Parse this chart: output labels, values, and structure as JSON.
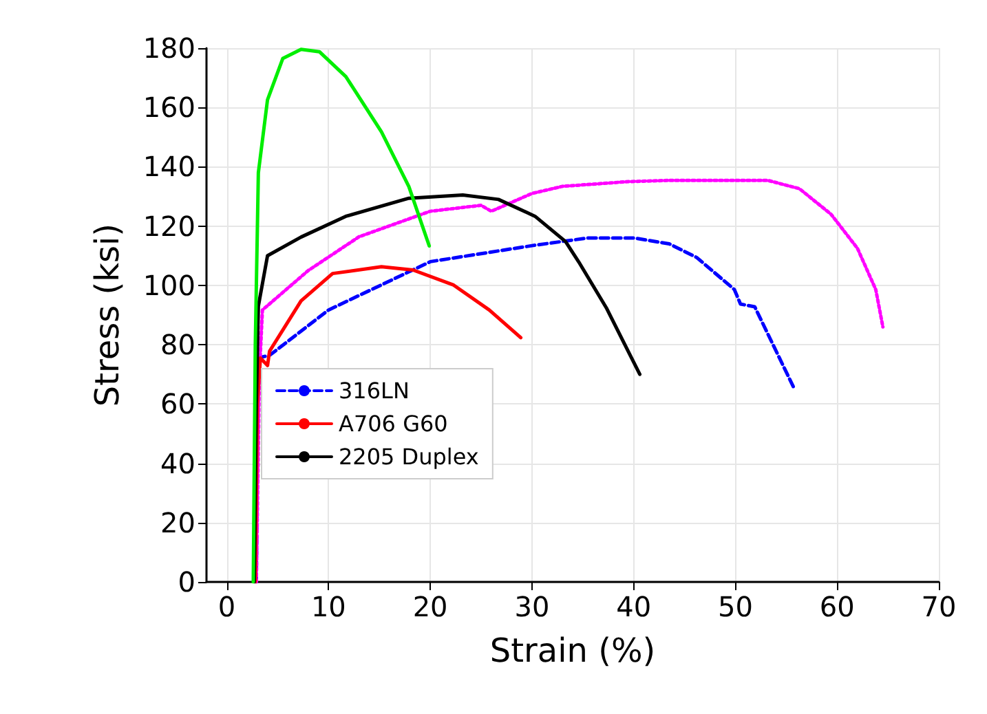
{
  "chart_data": {
    "type": "line",
    "xlabel": "Strain (%)",
    "ylabel": "Stress (ksi)",
    "xlim": [
      -2,
      70
    ],
    "xticks": [
      0,
      10,
      20,
      30,
      40,
      50,
      60,
      70
    ],
    "ylim": [
      0,
      180
    ],
    "yticks": [
      0,
      20,
      40,
      60,
      80,
      100,
      120,
      140,
      160,
      180
    ],
    "grid": true,
    "legend": "bottom left",
    "marker": "none",
    "series": [
      {
        "name": "316LN",
        "color": "#0000ff",
        "line_style": "dashed",
        "x": [
          2.9,
          3.1,
          4.2,
          10,
          20,
          30,
          35.5,
          40,
          43.5,
          46.2,
          49.9,
          50.5,
          51.9,
          55.7
        ],
        "values": [
          0,
          75.6,
          76.4,
          91.7,
          108,
          113.4,
          116,
          116,
          114,
          109.4,
          98.6,
          93.7,
          92.8,
          65.8
        ]
      },
      {
        "color": "#ff00ff",
        "line_style": "dotted",
        "x": [
          2.9,
          3.2,
          3.5,
          8,
          13,
          20,
          25,
          26,
          30,
          33,
          39.5,
          43.5,
          53.2,
          56.3,
          59.4,
          62,
          63.8,
          64.5
        ],
        "values": [
          0,
          70,
          91.7,
          105,
          116.4,
          125,
          127,
          125,
          131,
          133.4,
          135,
          135.4,
          135.4,
          132.6,
          124,
          112.5,
          98.6,
          86
        ]
      },
      {
        "name": "A706 G60",
        "color": "#ff0000",
        "line_style": "solid",
        "x": [
          2.8,
          3.0,
          3.3,
          4.0,
          4.2,
          7.3,
          10.4,
          15.2,
          18.3,
          22.3,
          25.8,
          28.9
        ],
        "values": [
          0,
          60,
          75.5,
          73,
          77.8,
          94.8,
          104,
          106.3,
          105.2,
          100.1,
          91.7,
          82.4
        ]
      },
      {
        "name": "2205 Duplex",
        "color": "#000000",
        "line_style": "solid",
        "x": [
          2.7,
          2.9,
          3.1,
          4.0,
          7.3,
          11.7,
          17.9,
          23.2,
          26.7,
          30.3,
          33.3,
          34.6,
          37.3,
          40.6
        ],
        "values": [
          0,
          60,
          93,
          110,
          116.3,
          123.3,
          129.4,
          130.5,
          129,
          123.3,
          114.8,
          107.9,
          92.5,
          70
        ]
      },
      {
        "color": "#00ee00",
        "line_style": "solid",
        "x": [
          2.6,
          2.8,
          3.1,
          4.0,
          5.5,
          7.3,
          9.1,
          11.7,
          15.2,
          17.9,
          19.9
        ],
        "values": [
          0,
          80,
          138,
          162.6,
          176.5,
          179.6,
          178.8,
          170.4,
          151.8,
          133.3,
          113.3
        ]
      }
    ]
  }
}
